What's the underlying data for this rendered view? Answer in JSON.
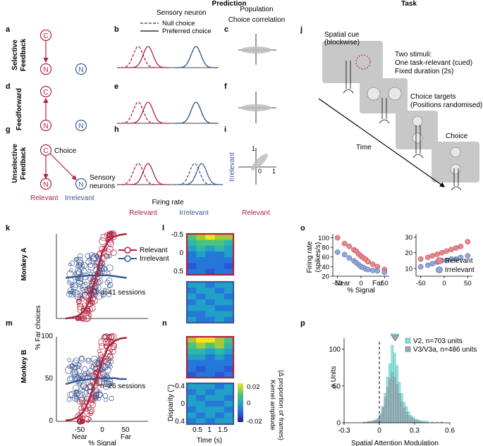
{
  "headers": {
    "prediction": "Prediction",
    "sensory_neuron": "Sensory neuron",
    "population": "Population",
    "choice_correlation": "Choice correlation",
    "task": "Task"
  },
  "legend_b": {
    "null_choice": "Null choice",
    "preferred_choice": "Preferred choice"
  },
  "panel_letters": [
    "a",
    "b",
    "c",
    "d",
    "e",
    "f",
    "g",
    "h",
    "i",
    "j",
    "k",
    "l",
    "m",
    "n",
    "o",
    "p"
  ],
  "rows": {
    "selective": [
      "Selective",
      "Feedback"
    ],
    "feedforward": "Feedforward",
    "unselective": [
      "Unselective",
      "Feedback"
    ]
  },
  "nodes": {
    "choice": "C",
    "neuron": "N"
  },
  "labels_g": {
    "choice": "Choice",
    "sensory": "Sensory",
    "neurons": "neurons",
    "relevant": "Relevant",
    "irrelevant": "Irrelevant"
  },
  "labels_h": {
    "firing_rate": "Firing rate",
    "relevant": "Relevant",
    "irrelevant": "Irrelevant"
  },
  "labels_i": {
    "irrelevant": "Irrelevant",
    "relevant": "Relevant",
    "t1": "1",
    "t0": "0",
    "tx1": "1"
  },
  "task": {
    "spatial_cue": "Spatial cue",
    "blockwise": "(blockwise)",
    "two_stimuli": "Two stimuli:",
    "relevant": "One task-relevant (cued)",
    "duration": "Fixed duration (2s)",
    "targets": "Choice targets",
    "positions": "(Positions randomised)",
    "choice": "Choice",
    "time": "Time"
  },
  "monkeys": {
    "a": "Monkey A",
    "b": "Monkey B"
  },
  "k": {
    "relevant": "Relevant",
    "irrelevant": "Irrelevant",
    "sessions": "n=41 sessions"
  },
  "m": {
    "sessions": "n=26 sessions",
    "ylabel": "% Far choices",
    "yt": [
      "100",
      "50",
      "0"
    ],
    "xt": [
      "-50",
      "0",
      "50"
    ],
    "near": "Near",
    "far": "Far",
    "xlabel": "% Signal"
  },
  "l": {
    "yt": [
      "-0.5",
      "0",
      "0.5"
    ]
  },
  "n": {
    "ylabel": "Disparity (°)",
    "yt": [
      "-0.4",
      "0",
      "0.4"
    ],
    "xt": [
      "0.5",
      "1",
      "1.5"
    ],
    "xlabel": "Time (s)",
    "cbar_t": [
      "0.02",
      "0",
      "-0.02"
    ],
    "cbar_label1": "Kernel amplitude",
    "cbar_label2": "(Δ proportion of frames)"
  },
  "o": {
    "ylabel1": "Firing rate",
    "ylabel2": "(spikes/s)",
    "yt1": [
      "100",
      "80",
      "60",
      "40",
      "20"
    ],
    "yt2": [
      "30",
      "20",
      "10"
    ],
    "xt1": [
      "-50",
      "0",
      "50"
    ],
    "xt2": [
      "-50",
      "0",
      "50"
    ],
    "near": "Near",
    "far": "Far",
    "xlabel": "% Signal",
    "relevant": "Relevant",
    "irrelevant": "Irrelevant"
  },
  "p": {
    "ylabel": "# Units",
    "yt": [
      "100",
      "50",
      "0"
    ],
    "xt": [
      "-0.3",
      "0",
      "0.3",
      "0.6"
    ],
    "xlabel": "Spatial Attention Modulation",
    "v2": "V2, n=703 units",
    "v3": "V3/V3a, n=486 units"
  },
  "colors": {
    "red": "#b0213e",
    "blue": "#3b5a93",
    "lightred": "#e58a8a",
    "lightblue": "#93a6d6",
    "cyan": "#7fe0da",
    "grey": "#9aa8b4"
  },
  "chart_data": [
    {
      "type": "line",
      "title": "o (left) Relevant",
      "ylabel": "Firing rate (spikes/s)",
      "xlabel": "% Signal",
      "ylim": [
        20,
        105
      ],
      "series": [
        {
          "name": "Relevant",
          "x": [
            -50,
            -35,
            -25,
            -15,
            -10,
            -5,
            0,
            5,
            10,
            15,
            25,
            35,
            50
          ],
          "values": [
            100,
            88,
            82,
            75,
            72,
            66,
            62,
            58,
            55,
            50,
            45,
            40,
            34
          ]
        },
        {
          "name": "Irrelevant",
          "x": [
            -50,
            -35,
            -25,
            -15,
            -10,
            -5,
            0,
            5,
            10,
            15,
            25,
            35,
            50
          ],
          "values": [
            70,
            65,
            58,
            52,
            48,
            44,
            40,
            38,
            35,
            34,
            32,
            31,
            28
          ]
        }
      ]
    },
    {
      "type": "line",
      "title": "o (right)",
      "xlabel": "% Signal",
      "ylim": [
        5,
        32
      ],
      "series": [
        {
          "name": "Relevant",
          "x": [
            -50,
            -35,
            -25,
            -15,
            -5,
            5,
            15,
            25,
            35,
            50
          ],
          "values": [
            16,
            17,
            18,
            19,
            20,
            21,
            22,
            23,
            24,
            27
          ]
        },
        {
          "name": "Irrelevant",
          "x": [
            -50,
            -35,
            -25,
            -15,
            -5,
            5,
            15,
            25,
            35,
            50
          ],
          "values": [
            11,
            12,
            13,
            14,
            15,
            15,
            16,
            16,
            17,
            18
          ]
        }
      ]
    },
    {
      "type": "bar",
      "title": "p histogram",
      "xlabel": "Spatial Attention Modulation",
      "ylabel": "# Units",
      "xlim": [
        -0.3,
        0.6
      ],
      "ylim": [
        0,
        115
      ],
      "x": [
        -0.13,
        -0.11,
        -0.09,
        -0.07,
        -0.05,
        -0.03,
        -0.01,
        0.01,
        0.03,
        0.05,
        0.07,
        0.09,
        0.11,
        0.13,
        0.15,
        0.17,
        0.19,
        0.21,
        0.23,
        0.25,
        0.27,
        0.29,
        0.31,
        0.33,
        0.35,
        0.37,
        0.39,
        0.41,
        0.45,
        0.49,
        0.53
      ],
      "series": [
        {
          "name": "V2, n=703 units",
          "values": [
            0,
            0,
            1,
            1,
            2,
            3,
            5,
            10,
            20,
            40,
            62,
            80,
            105,
            95,
            78,
            55,
            40,
            28,
            22,
            15,
            10,
            8,
            5,
            4,
            3,
            2,
            2,
            2,
            1,
            1,
            1
          ]
        },
        {
          "name": "V3/V3a, n=486 units",
          "values": [
            1,
            1,
            2,
            2,
            3,
            4,
            6,
            12,
            22,
            34,
            48,
            60,
            68,
            62,
            52,
            40,
            28,
            20,
            14,
            10,
            7,
            5,
            3,
            2,
            1,
            1,
            0,
            0,
            0,
            0,
            0
          ]
        }
      ]
    },
    {
      "type": "line",
      "title": "k Monkey A",
      "xlabel": "% Signal",
      "ylabel": "% Far choices",
      "ylim": [
        0,
        100
      ],
      "series": [
        {
          "name": "Relevant",
          "x": [
            -50,
            -40,
            -30,
            -20,
            -10,
            0,
            10,
            20,
            30,
            40,
            50
          ],
          "values": [
            0,
            1,
            3,
            8,
            22,
            50,
            78,
            92,
            97,
            99,
            100
          ]
        },
        {
          "name": "Irrelevant",
          "x": [
            -50,
            -40,
            -30,
            -20,
            -10,
            0,
            10,
            20,
            30,
            40,
            50
          ],
          "values": [
            48,
            49,
            50,
            50,
            51,
            51,
            51,
            51,
            50,
            49,
            48
          ]
        }
      ]
    },
    {
      "type": "line",
      "title": "m Monkey B",
      "xlabel": "% Signal",
      "ylabel": "% Far choices",
      "ylim": [
        0,
        100
      ],
      "series": [
        {
          "name": "Relevant",
          "x": [
            -50,
            -40,
            -30,
            -20,
            -10,
            0,
            10,
            20,
            30,
            40,
            50
          ],
          "values": [
            1,
            2,
            5,
            12,
            28,
            50,
            72,
            88,
            95,
            98,
            99
          ]
        },
        {
          "name": "Irrelevant",
          "x": [
            -50,
            -40,
            -30,
            -20,
            -10,
            0,
            10,
            20,
            30,
            40,
            50
          ],
          "values": [
            44,
            46,
            48,
            49,
            50,
            51,
            51,
            51,
            51,
            50,
            50
          ]
        }
      ]
    }
  ]
}
